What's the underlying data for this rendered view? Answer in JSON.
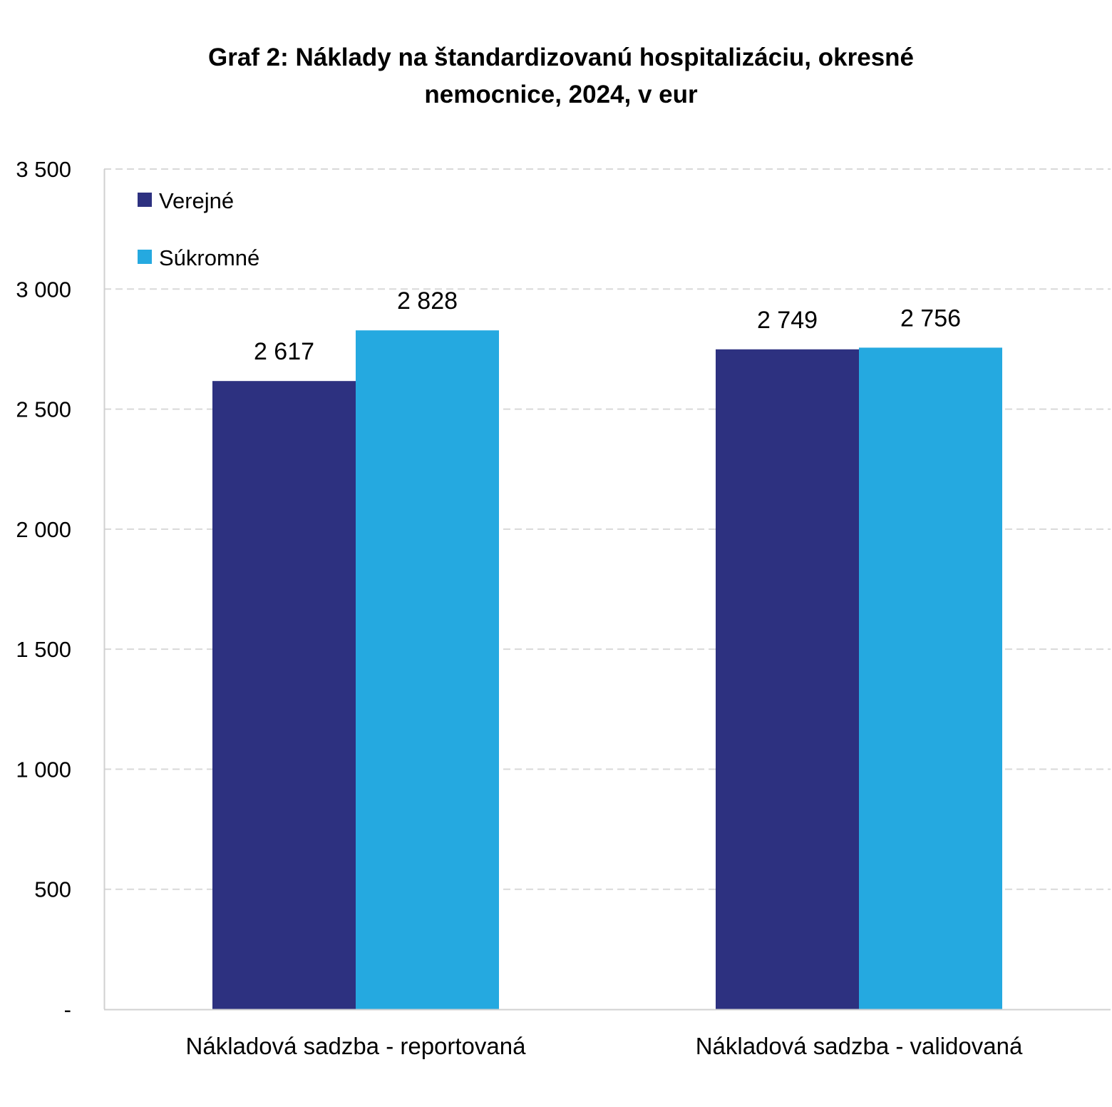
{
  "chart_data": {
    "type": "bar",
    "title": "Graf 2: Náklady na štandardizovanú hospitalizáciu, okresné nemocnice, 2024, v eur",
    "title_lines": [
      "Graf 2: Náklady na štandardizovanú hospitalizáciu, okresné",
      "nemocnice, 2024, v eur"
    ],
    "xlabel": "",
    "ylabel": "",
    "categories": [
      "Nákladová sadzba - reportovaná",
      "Nákladová sadzba - validovaná"
    ],
    "series": [
      {
        "name": "Verejné",
        "values": [
          2617,
          2749
        ],
        "labels": [
          "2 617",
          "2 749"
        ],
        "color": "#2d3180"
      },
      {
        "name": "Súkromné",
        "values": [
          2828,
          2756
        ],
        "labels": [
          "2 828",
          "2 756"
        ],
        "color": "#25a9e0"
      }
    ],
    "ylim": [
      0,
      3500
    ],
    "yticks": [
      0,
      500,
      1000,
      1500,
      2000,
      2500,
      3000,
      3500
    ],
    "ytick_labels": [
      "-",
      "500",
      "1 000",
      "1 500",
      "2 000",
      "2 500",
      "3 000",
      "3 500"
    ],
    "grid": true,
    "grid_style": "dashed",
    "legend_position": "top-left"
  }
}
